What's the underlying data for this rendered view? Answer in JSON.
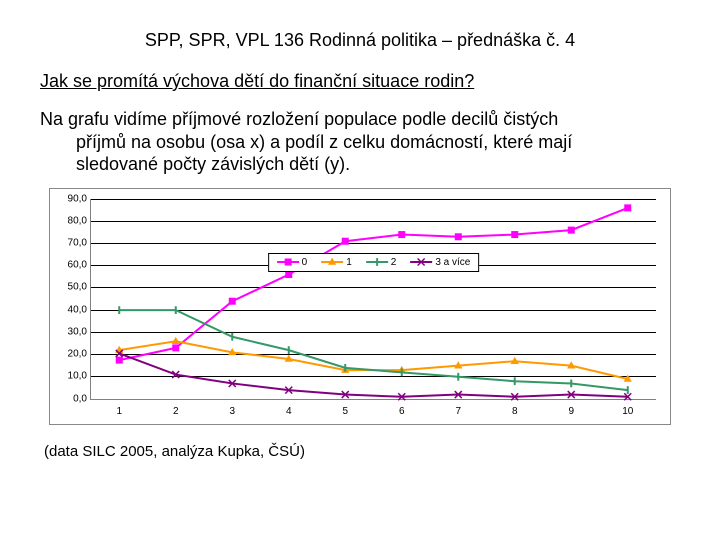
{
  "header": "SPP, SPR, VPL 136 Rodinná politika – přednáška č. 4",
  "subtitle": "Jak se promítá výchova dětí do finanční situace rodin?",
  "desc_line1": "Na grafu vidíme příjmové rozložení populace podle decilů čistých",
  "desc_line2": "příjmů na osobu (osa x) a podíl z celku domácností, které mají",
  "desc_line3": "sledované počty závislých dětí (y).",
  "footer": "(data SILC 2005, analýza Kupka, ČSÚ)",
  "chart": {
    "type": "line",
    "background_color": "#ffffff",
    "grid_color": "#000000",
    "border_color": "#888888",
    "ylim": [
      0,
      90
    ],
    "ytick_step": 10,
    "yticks": [
      "0,0",
      "10,0",
      "20,0",
      "30,0",
      "40,0",
      "50,0",
      "60,0",
      "70,0",
      "80,0",
      "90,0"
    ],
    "xcats": [
      "1",
      "2",
      "3",
      "4",
      "5",
      "6",
      "7",
      "8",
      "9",
      "10"
    ],
    "tick_fontsize": 10,
    "legend_fontsize": 10,
    "legend_border": "#000000",
    "line_width": 2,
    "marker_size": 7,
    "series": [
      {
        "label": "0",
        "color": "#ff00ff",
        "marker": "square",
        "values": [
          17.5,
          23.0,
          44.0,
          56.0,
          71.0,
          74.0,
          73.0,
          74.0,
          76.0,
          86.0
        ]
      },
      {
        "label": "1",
        "color": "#ff9900",
        "marker": "triangle",
        "values": [
          22.0,
          26.0,
          21.0,
          18.0,
          13.0,
          13.0,
          15.0,
          17.0,
          15.0,
          9.0
        ]
      },
      {
        "label": "2",
        "color": "#339966",
        "marker": "tick",
        "values": [
          40.0,
          40.0,
          28.0,
          22.0,
          14.0,
          12.0,
          10.0,
          8.0,
          7.0,
          4.0
        ]
      },
      {
        "label": "3 a více",
        "color": "#800080",
        "marker": "x",
        "values": [
          20.5,
          11.0,
          7.0,
          4.0,
          2.0,
          1.0,
          2.0,
          1.0,
          2.0,
          1.0
        ]
      }
    ]
  }
}
